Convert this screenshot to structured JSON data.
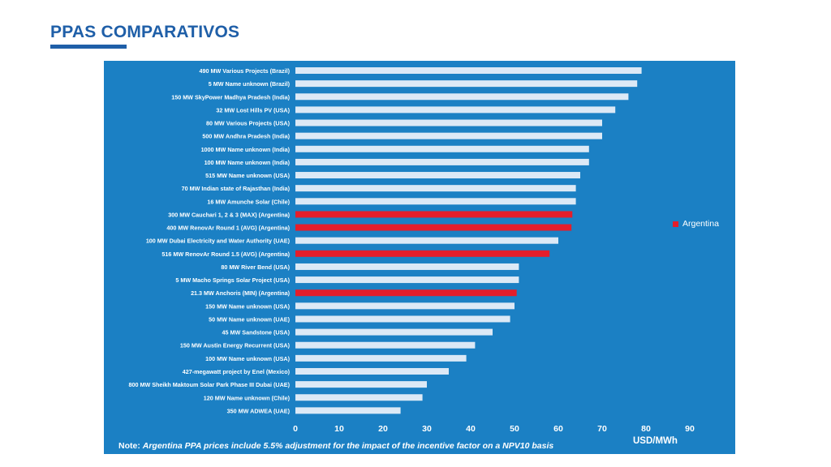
{
  "page": {
    "title": "PPAS COMPARATIVOS"
  },
  "colors": {
    "accent": "#1f5fa8",
    "panel": "#1b80c4",
    "bar_default": "#dce9f6",
    "bar_highlight": "#e41e2b"
  },
  "chart_data": {
    "type": "bar",
    "orientation": "horizontal",
    "categories": [
      "490 MW Various Projects (Brazil)",
      "5 MW Name unknown (Brazil)",
      "150 MW SkyPower Madhya Pradesh (India)",
      "32 MW Lost Hills PV (USA)",
      "80 MW Various Projects (USA)",
      "500 MW Andhra Pradesh (India)",
      "1000 MW Name unknown (India)",
      "100 MW Name unknown (India)",
      "515 MW Name unknown (USA)",
      "70 MW Indian state of Rajasthan (India)",
      "16 MW Amunche Solar (Chile)",
      "300 MW Cauchari 1, 2 & 3 (MAX) (Argentina)",
      "400 MW RenovAr Round 1 (AVG) (Argentina)",
      "100 MW Dubai Electricity and Water Authority (UAE)",
      "516 MW RenovAr Round 1.5 (AVG) (Argentina)",
      "80 MW River Bend (USA)",
      "5 MW Macho Springs Solar Project (USA)",
      "21.3 MW Anchoris (MIN) (Argentina)",
      "150 MW Name unknown (USA)",
      "50 MW Name unknown (UAE)",
      "45 MW Sandstone (USA)",
      "150 MW Austin Energy Recurrent (USA)",
      "100 MW Name unknown (USA)",
      "427-megawatt project by Enel (Mexico)",
      "800 MW Sheikh Maktoum Solar Park Phase III Dubai (UAE)",
      "120 MW Name unknown (Chile)",
      "350 MW ADWEA (UAE)"
    ],
    "values": [
      79,
      78,
      76,
      73,
      70,
      70,
      67,
      67,
      65,
      64,
      64,
      63.2,
      63,
      60,
      58,
      51,
      51,
      50.5,
      50,
      49,
      45,
      41,
      39,
      35,
      30,
      29,
      24
    ],
    "highlight": [
      false,
      false,
      false,
      false,
      false,
      false,
      false,
      false,
      false,
      false,
      false,
      true,
      true,
      false,
      true,
      false,
      false,
      true,
      false,
      false,
      false,
      false,
      false,
      false,
      false,
      false,
      false
    ],
    "xlim": [
      0,
      90
    ],
    "xticks": [
      "0",
      "10",
      "20",
      "30",
      "40",
      "50",
      "60",
      "70",
      "80",
      "90"
    ],
    "xlabel": "USD/MWh",
    "legend": {
      "label": "Argentina",
      "position": "right"
    },
    "note": {
      "prefix": "Note: ",
      "text": "Argentina PPA prices include 5.5% adjustment for the impact of the incentive factor on a NPV10 basis"
    }
  }
}
